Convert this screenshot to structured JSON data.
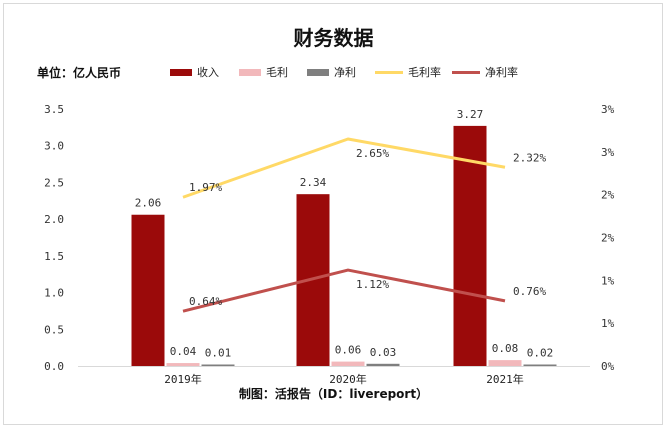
{
  "chart_data": {
    "type": "bar+line",
    "title": "财务数据",
    "unit_label": "单位：亿人民币",
    "source": "制图：活报告（ID：livereport）",
    "categories": [
      "2019年",
      "2020年",
      "2021年"
    ],
    "y_left": {
      "min": 0,
      "max": 3.5,
      "ticks": [
        "0.0",
        "0.5",
        "1.0",
        "1.5",
        "2.0",
        "2.5",
        "3.0",
        "3.5"
      ]
    },
    "y_right": {
      "min": 0,
      "max": 0.03,
      "ticks": [
        "0%",
        "1%",
        "1%",
        "2%",
        "2%",
        "3%",
        "3%"
      ]
    },
    "bar_series": [
      {
        "name": "收入",
        "color": "#9b0a0a",
        "values": [
          2.06,
          2.34,
          3.27
        ],
        "labels": [
          "2.06",
          "2.34",
          "3.27"
        ]
      },
      {
        "name": "毛利",
        "color": "#f2b8bb",
        "values": [
          0.04,
          0.06,
          0.08
        ],
        "labels": [
          "0.04",
          "0.06",
          "0.08"
        ]
      },
      {
        "name": "净利",
        "color": "#7f7f7f",
        "values": [
          0.01,
          0.03,
          0.02
        ],
        "labels": [
          "0.01",
          "0.03",
          "0.02"
        ]
      }
    ],
    "line_series": [
      {
        "name": "毛利率",
        "color": "#ffd966",
        "values": [
          0.0197,
          0.0265,
          0.0232
        ],
        "labels": [
          "1.97%",
          "2.65%",
          "2.32%"
        ]
      },
      {
        "name": "净利率",
        "color": "#c0504d",
        "values": [
          0.0064,
          0.0112,
          0.0076
        ],
        "labels": [
          "0.64%",
          "1.12%",
          "0.76%"
        ]
      }
    ]
  }
}
